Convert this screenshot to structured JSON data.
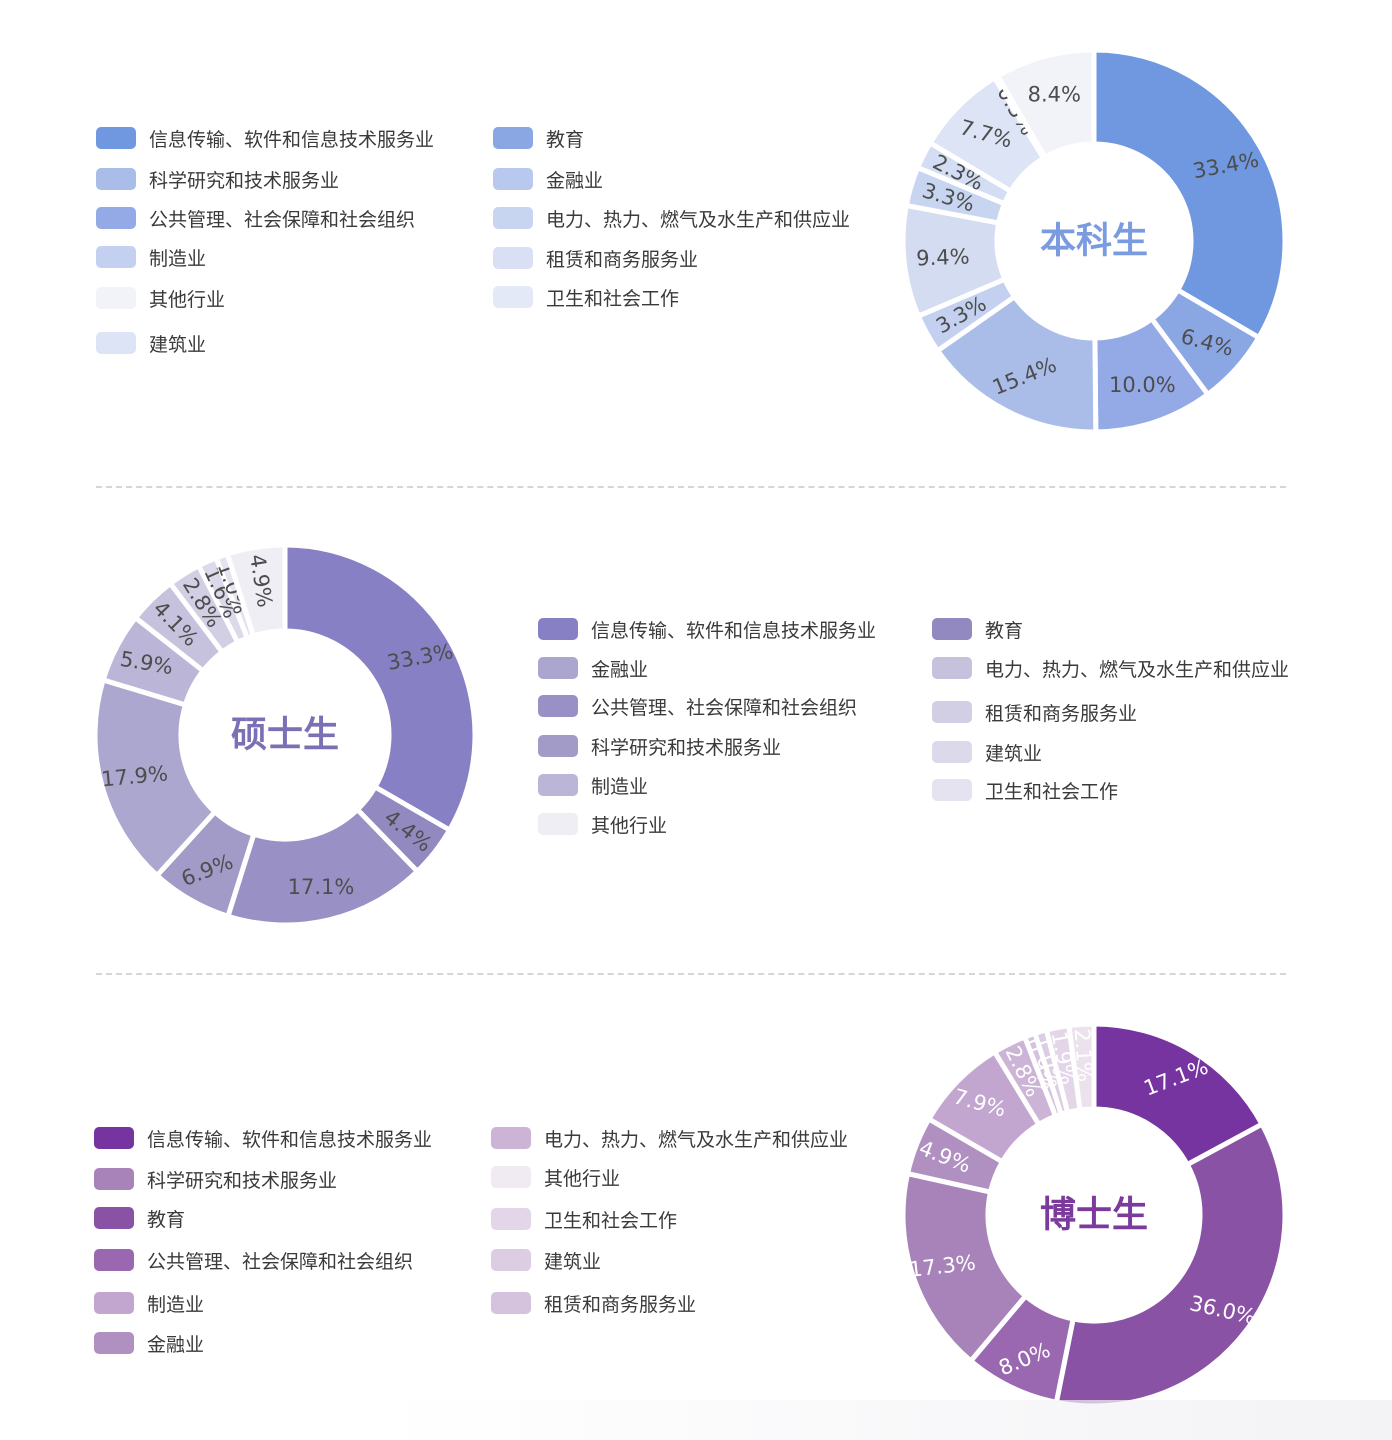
{
  "chart_data": [
    {
      "type": "pie",
      "title": "本科生",
      "title_color": "#7b9be0",
      "slice_values": [
        33.4,
        6.4,
        10.0,
        15.4,
        3.3,
        9.4,
        3.3,
        2.3,
        7.7,
        0.3,
        8.4
      ],
      "slice_labels": [
        "33.4%",
        "6.4%",
        "10.0%",
        "15.4%",
        "3.3%",
        "9.4%",
        "3.3%",
        "2.3%",
        "7.7%",
        "0.3%",
        "8.4%"
      ],
      "slice_colors": [
        "#7098e0",
        "#8aa6e3",
        "#94aae6",
        "#aabde9",
        "#c3d0f0",
        "#d4dcf2",
        "#c8d5f1",
        "#d3ddf4",
        "#dde4f5",
        "#e4e9f7",
        "#f1f3f9"
      ],
      "label_color": "#4d4d4d",
      "legend": [
        {
          "label": "信息传输、软件和信息技术服务业",
          "color": "#7098e0"
        },
        {
          "label": "科学研究和技术服务业",
          "color": "#aabde9"
        },
        {
          "label": "公共管理、社会保障和社会组织",
          "color": "#94aae6"
        },
        {
          "label": "制造业",
          "color": "#c3d0f0"
        },
        {
          "label": "其他行业",
          "color": "#f1f3f9"
        },
        {
          "label": "建筑业",
          "color": "#dde4f5"
        },
        {
          "label": "教育",
          "color": "#8aa6e3"
        },
        {
          "label": "金融业",
          "color": "#b9c8ee"
        },
        {
          "label": "电力、热力、燃气及水生产和供应业",
          "color": "#c8d5f1"
        },
        {
          "label": "租赁和商务服务业",
          "color": "#d9e0f4"
        },
        {
          "label": "卫生和社会工作",
          "color": "#e4e9f7"
        }
      ]
    },
    {
      "type": "pie",
      "title": "硕士生",
      "title_color": "#7b70b5",
      "slice_values": [
        33.3,
        4.4,
        17.1,
        6.9,
        17.9,
        5.9,
        4.1,
        2.8,
        1.6,
        1.0,
        4.9
      ],
      "slice_labels": [
        "33.3%",
        "4.4%",
        "17.1%",
        "6.9%",
        "17.9%",
        "5.9%",
        "4.1%",
        "2.8%",
        "1.6%",
        "1.0%",
        "4.9%"
      ],
      "slice_colors": [
        "#8780c4",
        "#9189bf",
        "#9991c5",
        "#a29ac7",
        "#aca7cf",
        "#bbb6d8",
        "#c6c2de",
        "#d2cfe5",
        "#dcd9eb",
        "#e5e3f0",
        "#efeef5"
      ],
      "label_color": "#4d4d4d",
      "legend": [
        {
          "label": "信息传输、软件和信息技术服务业",
          "color": "#8780c4"
        },
        {
          "label": "金融业",
          "color": "#aba6ce"
        },
        {
          "label": "公共管理、社会保障和社会组织",
          "color": "#9991c5"
        },
        {
          "label": "科学研究和技术服务业",
          "color": "#a29ac7"
        },
        {
          "label": "制造业",
          "color": "#bbb6d8"
        },
        {
          "label": "其他行业",
          "color": "#efeef5"
        },
        {
          "label": "教育",
          "color": "#9189bf"
        },
        {
          "label": "电力、热力、燃气及水生产和供应业",
          "color": "#c6c2de"
        },
        {
          "label": "租赁和商务服务业",
          "color": "#d2cfe5"
        },
        {
          "label": "建筑业",
          "color": "#dcd9eb"
        },
        {
          "label": "卫生和社会工作",
          "color": "#e5e3f0"
        }
      ]
    },
    {
      "type": "pie",
      "title": "博士生",
      "title_color": "#7a3b9c",
      "slice_values": [
        17.1,
        36.0,
        8.0,
        17.3,
        4.9,
        7.9,
        2.8,
        0.9,
        1.0,
        1.9,
        2.1
      ],
      "slice_labels": [
        "17.1%",
        "36.0%",
        "8.0%",
        "17.3%",
        "4.9%",
        "7.9%",
        "2.8%",
        "0.9%",
        "1.0%",
        "1.9%",
        "2.1%"
      ],
      "slice_colors": [
        "#7634a0",
        "#8a52a5",
        "#9a68b0",
        "#a883ba",
        "#b08fc1",
        "#c2a6cf",
        "#cbb4d6",
        "#d5c2dd",
        "#dccde3",
        "#e3d6e8",
        "#ebe2ee"
      ],
      "label_color": "#ffffff",
      "legend": [
        {
          "label": "信息传输、软件和信息技术服务业",
          "color": "#7634a0"
        },
        {
          "label": "科学研究和技术服务业",
          "color": "#a883ba"
        },
        {
          "label": "教育",
          "color": "#8a52a5"
        },
        {
          "label": "公共管理、社会保障和社会组织",
          "color": "#9a68b0"
        },
        {
          "label": "制造业",
          "color": "#c2a6cf"
        },
        {
          "label": "金融业",
          "color": "#b08fc1"
        },
        {
          "label": "电力、热力、燃气及水生产和供应业",
          "color": "#cbb4d6"
        },
        {
          "label": "其他行业",
          "color": "#f0eaf2"
        },
        {
          "label": "卫生和社会工作",
          "color": "#e3d6e8"
        },
        {
          "label": "建筑业",
          "color": "#dccde3"
        },
        {
          "label": "租赁和商务服务业",
          "color": "#d5c2dd"
        }
      ]
    }
  ]
}
